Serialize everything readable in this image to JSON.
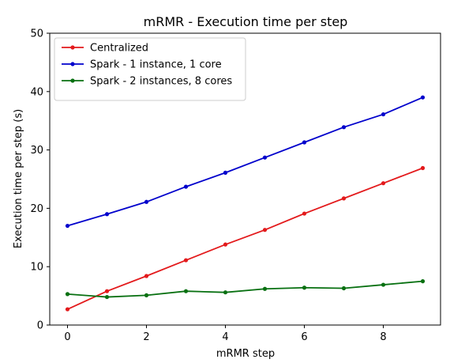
{
  "chart_data": {
    "type": "line",
    "title": "mRMR - Execution time per step",
    "xlabel": "mRMR step",
    "ylabel": "Execution time per step (s)",
    "xlim": [
      -0.45,
      9.45
    ],
    "ylim": [
      0,
      50
    ],
    "xticks": [
      0,
      2,
      4,
      6,
      8
    ],
    "yticks": [
      0,
      10,
      20,
      30,
      40,
      50
    ],
    "grid": false,
    "legend_position": "top-left",
    "x": [
      0,
      1,
      2,
      3,
      4,
      5,
      6,
      7,
      8,
      9
    ],
    "series": [
      {
        "name": "Centralized",
        "color": "#e31a1c",
        "values": [
          2.7,
          5.8,
          8.4,
          11.1,
          13.8,
          16.3,
          19.1,
          21.7,
          24.3,
          26.9
        ]
      },
      {
        "name": "Spark - 1 instance, 1 core",
        "color": "#0000cc",
        "values": [
          17.0,
          19.0,
          21.1,
          23.7,
          26.1,
          28.7,
          31.3,
          33.9,
          36.1,
          39.0
        ]
      },
      {
        "name": "Spark - 2 instances, 8 cores",
        "color": "#087011",
        "values": [
          5.3,
          4.8,
          5.1,
          5.8,
          5.6,
          6.2,
          6.4,
          6.3,
          6.9,
          7.5
        ]
      }
    ]
  }
}
